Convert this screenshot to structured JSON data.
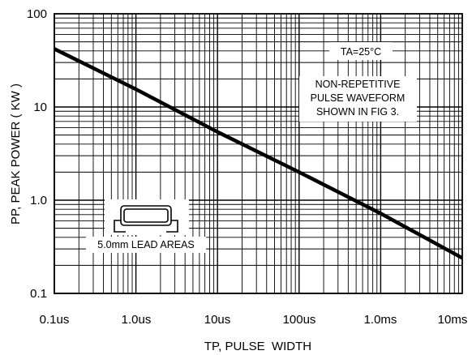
{
  "chart_data": {
    "type": "line",
    "title": "",
    "xlabel": "TP, PULSE  WIDTH",
    "ylabel": "PP, PEAK POWER ( KW )",
    "x_scale": "log",
    "y_scale": "log",
    "xlim": [
      "0.1us",
      "10ms"
    ],
    "xlim_seconds": [
      1e-07,
      0.01
    ],
    "ylim": [
      0.1,
      100
    ],
    "grid": true,
    "x_ticks": [
      "0.1us",
      "1.0us",
      "10us",
      "100us",
      "1.0ms",
      "10ms"
    ],
    "y_ticks": [
      "0.1",
      "1.0",
      "10",
      "100"
    ],
    "series": [
      {
        "x_seconds": [
          1e-07,
          1e-06,
          1e-05,
          0.0001,
          0.001,
          0.01
        ],
        "x": [
          "0.1us",
          "1.0us",
          "10us",
          "100us",
          "1.0ms",
          "10ms"
        ],
        "y": [
          42,
          15.5,
          5.4,
          2.0,
          0.72,
          0.24
        ]
      }
    ],
    "annotations": {
      "ta": "TA=25°C",
      "note": [
        "NON-REPETITIVE",
        "PULSE WAVEFORM",
        "SHOWN IN FIG 3."
      ],
      "lead": "5.0mm LEAD AREAS"
    },
    "colors": {
      "line": "#000000",
      "grid": "#000000",
      "background": "#ffffff"
    }
  }
}
